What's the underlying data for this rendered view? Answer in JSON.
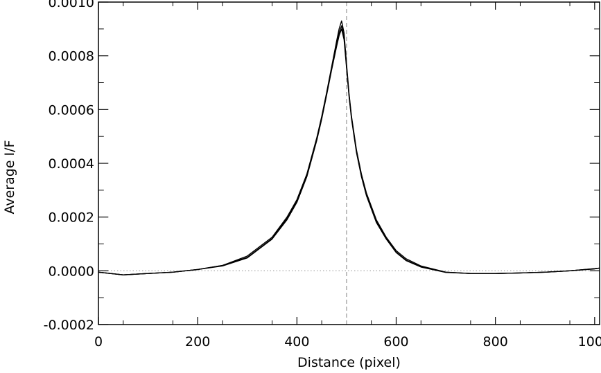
{
  "chart_data": {
    "type": "line",
    "title": "",
    "xlabel": "Distance (pixel)",
    "ylabel": "Average I/F",
    "xlim": [
      0,
      1010
    ],
    "ylim": [
      -0.0002,
      0.001
    ],
    "x_ticks": [
      0,
      200,
      400,
      600,
      800,
      1000
    ],
    "x_tick_labels": [
      "0",
      "200",
      "400",
      "600",
      "800",
      "1000"
    ],
    "y_ticks": [
      -0.0002,
      0.0,
      0.0002,
      0.0004,
      0.0006,
      0.0008,
      0.001
    ],
    "y_tick_labels": [
      "-0.0002",
      "0.0000",
      "0.0002",
      "0.0004",
      "0.0006",
      "0.0008",
      "0.0010"
    ],
    "grid": false,
    "reference_lines": [
      {
        "orientation": "horizontal",
        "value": 0.0,
        "style": "dotted",
        "color": "#b0b0b0"
      },
      {
        "orientation": "vertical",
        "value": 500,
        "style": "dashed",
        "color": "#a0a0a0"
      }
    ],
    "series": [
      {
        "color": "#000000",
        "x": [
          0,
          50,
          100,
          150,
          200,
          250,
          300,
          350,
          380,
          400,
          420,
          440,
          450,
          460,
          470,
          480,
          485,
          490,
          495,
          500,
          505,
          510,
          520,
          530,
          540,
          560,
          580,
          600,
          620,
          650,
          700,
          750,
          800,
          850,
          900,
          950,
          1000,
          1010
        ],
        "y": [
          -5e-06,
          -1.5e-05,
          -1e-05,
          -5e-06,
          5e-06,
          2e-05,
          5.5e-05,
          0.000125,
          0.0002,
          0.000265,
          0.00036,
          0.000495,
          0.000575,
          0.000665,
          0.00076,
          0.000855,
          0.0009,
          0.00093,
          0.000885,
          0.00077,
          0.00066,
          0.000575,
          0.00045,
          0.00036,
          0.00029,
          0.00019,
          0.000125,
          7.5e-05,
          4.5e-05,
          1.8e-05,
          -5e-06,
          -1e-05,
          -1e-05,
          -8e-06,
          -5e-06,
          0.0,
          8e-06,
          1e-05
        ]
      },
      {
        "color": "#000000",
        "x": [
          0,
          50,
          100,
          150,
          200,
          250,
          300,
          350,
          380,
          400,
          420,
          440,
          450,
          460,
          470,
          480,
          485,
          490,
          495,
          500,
          505,
          510,
          520,
          530,
          540,
          560,
          580,
          600,
          620,
          650,
          700,
          750,
          800,
          850,
          900,
          950,
          1000,
          1010
        ],
        "y": [
          -5e-06,
          -1.5e-05,
          -1e-05,
          -5e-06,
          5e-06,
          2e-05,
          5e-05,
          0.00012,
          0.000195,
          0.00026,
          0.000355,
          0.00049,
          0.00057,
          0.00066,
          0.000752,
          0.000843,
          0.000885,
          0.000912,
          0.00087,
          0.000762,
          0.000655,
          0.00057,
          0.000445,
          0.000355,
          0.000285,
          0.000185,
          0.00012,
          7e-05,
          4e-05,
          1.5e-05,
          -5e-06,
          -1e-05,
          -1e-05,
          -8e-06,
          -5e-06,
          0.0,
          8e-06,
          1e-05
        ]
      },
      {
        "color": "#000000",
        "x": [
          0,
          50,
          100,
          150,
          200,
          250,
          300,
          350,
          380,
          400,
          420,
          440,
          450,
          460,
          470,
          480,
          485,
          490,
          495,
          500,
          505,
          510,
          520,
          530,
          540,
          560,
          580,
          600,
          620,
          650,
          700,
          750,
          800,
          850,
          900,
          950,
          1000,
          1010
        ],
        "y": [
          -5e-06,
          -1.5e-05,
          -1e-05,
          -5e-06,
          5e-06,
          1.8e-05,
          4.8e-05,
          0.000118,
          0.00019,
          0.000255,
          0.00035,
          0.000485,
          0.000565,
          0.000655,
          0.000748,
          0.000835,
          0.000875,
          0.0009,
          0.00086,
          0.000755,
          0.00065,
          0.000565,
          0.00044,
          0.00035,
          0.00028,
          0.00018,
          0.000118,
          6.8e-05,
          3.8e-05,
          1.4e-05,
          -6e-06,
          -1e-05,
          -1e-05,
          -8e-06,
          -5e-06,
          0.0,
          7e-06,
          1e-05
        ]
      }
    ]
  }
}
